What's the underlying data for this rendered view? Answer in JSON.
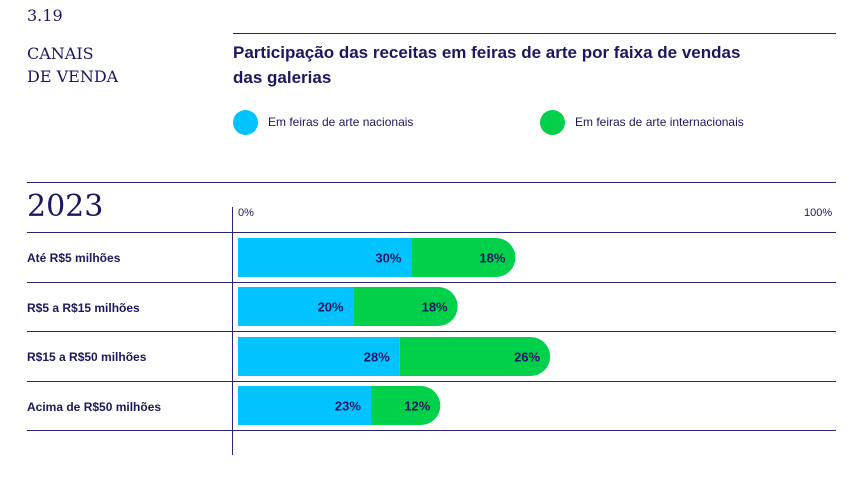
{
  "section": {
    "number": "3.19",
    "title_line1": "CANAIS",
    "title_line2": "DE VENDA"
  },
  "chart_data": {
    "type": "bar",
    "orientation": "horizontal",
    "stacked": true,
    "title": "Participação das receitas em feiras de arte por faixa de vendas das galerias",
    "year": "2023",
    "categories": [
      "Até R$5 milhões",
      "R$5 a R$15 milhões",
      "R$15 a R$50 milhões",
      "Acima de R$50 milhões"
    ],
    "series": [
      {
        "name": "Em feiras de arte nacionais",
        "color": "#00c3ff",
        "values": [
          30,
          20,
          28,
          23
        ]
      },
      {
        "name": "Em feiras de arte internacionais",
        "color": "#00d04a",
        "values": [
          18,
          18,
          26,
          12
        ]
      }
    ],
    "value_suffix": "%",
    "xlim": [
      0,
      100
    ],
    "x_tick_labels": [
      "0%",
      "100%"
    ],
    "legend_position": "top"
  }
}
